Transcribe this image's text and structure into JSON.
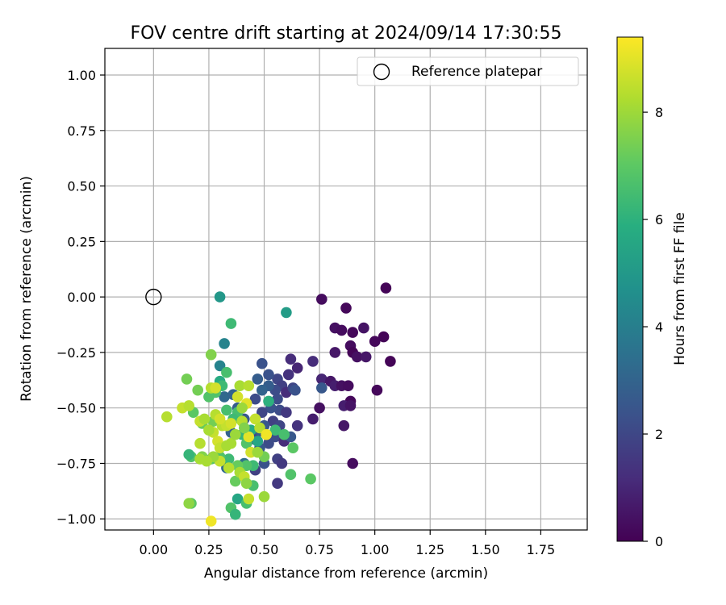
{
  "chart_data": {
    "type": "scatter",
    "title": "FOV centre drift starting at 2024/09/14 17:30:55",
    "xlabel": "Angular distance from reference (arcmin)",
    "ylabel": "Rotation from reference (arcmin)",
    "xlim": [
      -0.22,
      1.96
    ],
    "ylim": [
      -1.05,
      1.12
    ],
    "xticks": [
      0.0,
      0.25,
      0.5,
      0.75,
      1.0,
      1.25,
      1.5,
      1.75
    ],
    "xtick_labels": [
      "0.00",
      "0.25",
      "0.50",
      "0.75",
      "1.00",
      "1.25",
      "1.50",
      "1.75"
    ],
    "yticks": [
      1.0,
      0.75,
      0.5,
      0.25,
      0.0,
      -0.25,
      -0.5,
      -0.75,
      -1.0
    ],
    "ytick_labels": [
      "1.00",
      "0.75",
      "0.50",
      "0.25",
      "0.00",
      "−0.25",
      "−0.50",
      "−0.75",
      "−1.00"
    ],
    "grid": true,
    "legend": {
      "placement": "top-right",
      "entries": [
        {
          "label": "Reference platepar",
          "marker": "open-circle"
        }
      ]
    },
    "reference": {
      "x": 0.0,
      "y": 0.0
    },
    "colorbar": {
      "label": "Hours from first FF file",
      "range": [
        0,
        9.4
      ],
      "colormap": "viridis",
      "ticks": [
        0,
        2,
        4,
        6,
        8
      ],
      "tick_labels": [
        "0",
        "2",
        "4",
        "6",
        "8"
      ]
    },
    "series": [
      {
        "points": [
          [
            1.05,
            0.04,
            0.1
          ],
          [
            0.76,
            -0.01,
            0.3
          ],
          [
            0.87,
            -0.05,
            0.2
          ],
          [
            1.04,
            -0.18,
            0.1
          ],
          [
            0.82,
            -0.14,
            0.4
          ],
          [
            0.85,
            -0.15,
            0.3
          ],
          [
            0.9,
            -0.16,
            0.2
          ],
          [
            0.95,
            -0.14,
            0.5
          ],
          [
            1.0,
            -0.2,
            0.2
          ],
          [
            0.89,
            -0.22,
            0.3
          ],
          [
            0.82,
            -0.25,
            0.6
          ],
          [
            0.9,
            -0.25,
            0.1
          ],
          [
            0.92,
            -0.27,
            0.4
          ],
          [
            0.96,
            -0.27,
            0.6
          ],
          [
            1.07,
            -0.29,
            0.1
          ],
          [
            0.62,
            -0.28,
            1.2
          ],
          [
            0.72,
            -0.29,
            1.2
          ],
          [
            0.65,
            -0.32,
            1.0
          ],
          [
            0.49,
            -0.3,
            2.4
          ],
          [
            1.01,
            -0.42,
            0.2
          ],
          [
            0.76,
            -0.37,
            1.0
          ],
          [
            0.8,
            -0.38,
            0.6
          ],
          [
            0.82,
            -0.4,
            0.8
          ],
          [
            0.85,
            -0.4,
            0.4
          ],
          [
            0.88,
            -0.4,
            0.3
          ],
          [
            0.89,
            -0.47,
            0.2
          ],
          [
            0.86,
            -0.49,
            0.8
          ],
          [
            0.89,
            -0.49,
            0.5
          ],
          [
            0.75,
            -0.5,
            0.4
          ],
          [
            0.72,
            -0.55,
            0.8
          ],
          [
            0.86,
            -0.58,
            0.6
          ],
          [
            0.9,
            -0.75,
            0.3
          ],
          [
            0.61,
            -0.35,
            1.4
          ],
          [
            0.56,
            -0.37,
            2.0
          ],
          [
            0.52,
            -0.35,
            2.4
          ],
          [
            0.58,
            -0.4,
            1.8
          ],
          [
            0.55,
            -0.42,
            2.2
          ],
          [
            0.6,
            -0.43,
            1.2
          ],
          [
            0.63,
            -0.41,
            2.0
          ],
          [
            0.64,
            -0.42,
            2.4
          ],
          [
            0.47,
            -0.37,
            2.8
          ],
          [
            0.52,
            -0.4,
            2.8
          ],
          [
            0.49,
            -0.42,
            3.0
          ],
          [
            0.56,
            -0.46,
            2.2
          ],
          [
            0.76,
            -0.41,
            2.6
          ],
          [
            0.57,
            -0.51,
            2.2
          ],
          [
            0.53,
            -0.5,
            2.4
          ],
          [
            0.49,
            -0.52,
            2.0
          ],
          [
            0.46,
            -0.46,
            2.2
          ],
          [
            0.6,
            -0.52,
            1.6
          ],
          [
            0.54,
            -0.56,
            1.8
          ],
          [
            0.57,
            -0.58,
            2.0
          ],
          [
            0.5,
            -0.58,
            2.6
          ],
          [
            0.47,
            -0.61,
            2.8
          ],
          [
            0.45,
            -0.64,
            2.0
          ],
          [
            0.55,
            -0.63,
            2.2
          ],
          [
            0.59,
            -0.65,
            1.2
          ],
          [
            0.65,
            -0.58,
            1.4
          ],
          [
            0.62,
            -0.63,
            2.6
          ],
          [
            0.52,
            -0.66,
            2.2
          ],
          [
            0.48,
            -0.68,
            2.6
          ],
          [
            0.5,
            -0.75,
            2.4
          ],
          [
            0.56,
            -0.73,
            1.8
          ],
          [
            0.58,
            -0.75,
            1.6
          ],
          [
            0.46,
            -0.78,
            1.8
          ],
          [
            0.56,
            -0.84,
            1.6
          ],
          [
            0.32,
            -0.45,
            3.2
          ],
          [
            0.36,
            -0.44,
            3.0
          ],
          [
            0.38,
            -0.5,
            2.8
          ],
          [
            0.41,
            -0.55,
            2.6
          ],
          [
            0.35,
            -0.61,
            3.0
          ],
          [
            0.33,
            -0.77,
            3.2
          ],
          [
            0.41,
            -0.75,
            3.4
          ],
          [
            0.3,
            -0.31,
            4.2
          ],
          [
            0.32,
            -0.21,
            4.2
          ],
          [
            0.3,
            0.0,
            5.0
          ],
          [
            0.6,
            -0.07,
            5.2
          ],
          [
            0.35,
            -0.12,
            6.4
          ],
          [
            0.38,
            -0.52,
            6.6
          ],
          [
            0.3,
            -0.38,
            5.8
          ],
          [
            0.33,
            -0.34,
            6.6
          ],
          [
            0.31,
            -0.4,
            6.4
          ],
          [
            0.28,
            -0.43,
            6.8
          ],
          [
            0.25,
            -0.45,
            6.8
          ],
          [
            0.2,
            -0.42,
            7.4
          ],
          [
            0.15,
            -0.37,
            7.4
          ],
          [
            0.26,
            -0.26,
            7.6
          ],
          [
            0.18,
            -0.52,
            7.0
          ],
          [
            0.22,
            -0.57,
            7.2
          ],
          [
            0.27,
            -0.56,
            7.4
          ],
          [
            0.33,
            -0.51,
            6.6
          ],
          [
            0.36,
            -0.55,
            6.4
          ],
          [
            0.4,
            -0.62,
            6.2
          ],
          [
            0.42,
            -0.66,
            6.8
          ],
          [
            0.44,
            -0.6,
            5.8
          ],
          [
            0.47,
            -0.65,
            5.6
          ],
          [
            0.52,
            -0.47,
            6.0
          ],
          [
            0.55,
            -0.6,
            6.4
          ],
          [
            0.59,
            -0.62,
            6.6
          ],
          [
            0.63,
            -0.68,
            7.0
          ],
          [
            0.5,
            -0.72,
            7.4
          ],
          [
            0.45,
            -0.76,
            6.4
          ],
          [
            0.42,
            -0.76,
            6.8
          ],
          [
            0.38,
            -0.76,
            7.2
          ],
          [
            0.34,
            -0.73,
            6.4
          ],
          [
            0.3,
            -0.72,
            6.8
          ],
          [
            0.26,
            -0.73,
            7.0
          ],
          [
            0.22,
            -0.72,
            7.6
          ],
          [
            0.17,
            -0.72,
            6.8
          ],
          [
            0.16,
            -0.71,
            6.2
          ],
          [
            0.62,
            -0.8,
            6.8
          ],
          [
            0.71,
            -0.82,
            7.0
          ],
          [
            0.37,
            -0.83,
            7.2
          ],
          [
            0.45,
            -0.85,
            6.6
          ],
          [
            0.38,
            -0.91,
            5.6
          ],
          [
            0.42,
            -0.93,
            6.6
          ],
          [
            0.35,
            -0.95,
            6.8
          ],
          [
            0.37,
            -0.98,
            6.2
          ],
          [
            0.17,
            -0.93,
            7.0
          ],
          [
            0.16,
            -0.93,
            7.8
          ],
          [
            0.5,
            -0.9,
            8.0
          ],
          [
            0.43,
            -0.91,
            8.6
          ],
          [
            0.26,
            -1.01,
            9.2
          ],
          [
            0.06,
            -0.54,
            8.4
          ],
          [
            0.13,
            -0.5,
            8.6
          ],
          [
            0.16,
            -0.49,
            8.4
          ],
          [
            0.21,
            -0.56,
            8.6
          ],
          [
            0.23,
            -0.55,
            8.2
          ],
          [
            0.27,
            -0.61,
            8.6
          ],
          [
            0.29,
            -0.65,
            8.8
          ],
          [
            0.31,
            -0.58,
            8.4
          ],
          [
            0.33,
            -0.58,
            8.6
          ],
          [
            0.35,
            -0.66,
            8.2
          ],
          [
            0.37,
            -0.62,
            8.0
          ],
          [
            0.4,
            -0.56,
            8.4
          ],
          [
            0.39,
            -0.4,
            8.2
          ],
          [
            0.43,
            -0.4,
            8.4
          ],
          [
            0.38,
            -0.45,
            8.8
          ],
          [
            0.42,
            -0.48,
            9.0
          ],
          [
            0.4,
            -0.5,
            8.0
          ],
          [
            0.46,
            -0.55,
            8.6
          ],
          [
            0.48,
            -0.59,
            8.4
          ],
          [
            0.51,
            -0.62,
            9.2
          ],
          [
            0.43,
            -0.63,
            9.0
          ],
          [
            0.41,
            -0.59,
            7.6
          ],
          [
            0.44,
            -0.7,
            8.8
          ],
          [
            0.47,
            -0.7,
            8.0
          ],
          [
            0.39,
            -0.79,
            8.2
          ],
          [
            0.41,
            -0.81,
            8.6
          ],
          [
            0.42,
            -0.84,
            7.8
          ],
          [
            0.34,
            -0.77,
            8.4
          ],
          [
            0.3,
            -0.74,
            8.6
          ],
          [
            0.27,
            -0.72,
            8.0
          ],
          [
            0.24,
            -0.74,
            8.2
          ],
          [
            0.21,
            -0.66,
            8.4
          ],
          [
            0.21,
            -0.73,
            8.2
          ],
          [
            0.28,
            -0.53,
            8.4
          ],
          [
            0.3,
            -0.55,
            8.8
          ],
          [
            0.25,
            -0.6,
            8.2
          ],
          [
            0.26,
            -0.41,
            8.4
          ],
          [
            0.28,
            -0.41,
            8.8
          ],
          [
            0.3,
            -0.68,
            8.6
          ],
          [
            0.33,
            -0.67,
            8.2
          ],
          [
            0.35,
            -0.57,
            8.8
          ]
        ]
      }
    ]
  }
}
